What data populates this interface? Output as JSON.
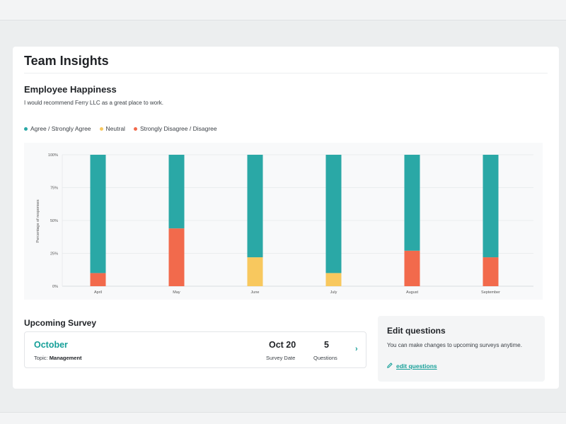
{
  "page": {
    "title": "Team Insights"
  },
  "happiness": {
    "title": "Employee Happiness",
    "description": "I would recommend Ferry LLC as a great place to work."
  },
  "legend": [
    {
      "label": "Agree / Strongly Agree",
      "color": "#2aa8a6"
    },
    {
      "label": "Neutral",
      "color": "#f8c85e"
    },
    {
      "label": "Strongly Disagree / Disagree",
      "color": "#f26a4c"
    }
  ],
  "chart_data": {
    "type": "bar",
    "stacked": true,
    "categories": [
      "April",
      "May",
      "June",
      "July",
      "August",
      "September"
    ],
    "ylabel": "Percentage of responses",
    "ylim": [
      0,
      100
    ],
    "yticks": [
      "0%",
      "25%",
      "50%",
      "75%",
      "100%"
    ],
    "grid": true,
    "series": [
      {
        "name": "Strongly Disagree / Disagree",
        "color": "#f26a4c",
        "values": [
          10,
          44,
          0,
          0,
          27,
          22
        ]
      },
      {
        "name": "Neutral",
        "color": "#f8c85e",
        "values": [
          0,
          0,
          22,
          10,
          0,
          0
        ]
      },
      {
        "name": "Agree / Strongly Agree",
        "color": "#2aa8a6",
        "values": [
          90,
          56,
          78,
          90,
          73,
          78
        ]
      }
    ]
  },
  "upcoming": {
    "heading": "Upcoming Survey",
    "month": "October",
    "topic_label": "Topic:",
    "topic": "Management",
    "date": "Oct 20",
    "date_label": "Survey Date",
    "questions": "5",
    "questions_label": "Questions"
  },
  "edit": {
    "title": "Edit questions",
    "description": "You can make changes to upcoming surveys anytime.",
    "link": "edit questions"
  }
}
